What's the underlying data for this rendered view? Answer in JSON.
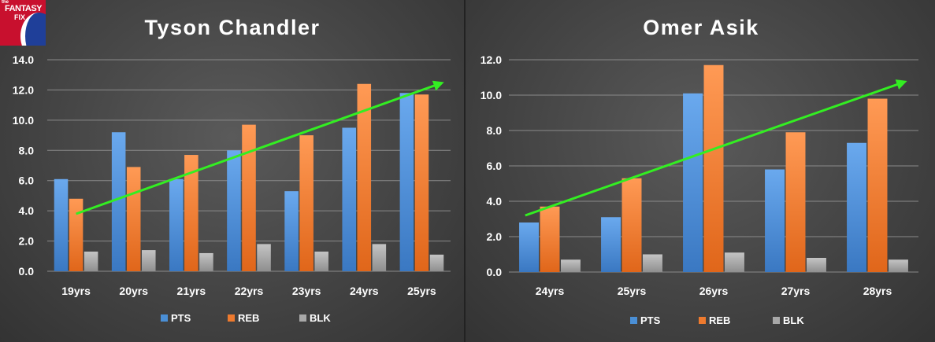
{
  "logo": {
    "line1": "the",
    "line2": "FANTASY",
    "line3": "FIX"
  },
  "chart_data": [
    {
      "type": "bar",
      "title": "Tyson Chandler",
      "categories": [
        "19yrs",
        "20yrs",
        "21yrs",
        "22yrs",
        "23yrs",
        "24yrs",
        "25yrs"
      ],
      "series": [
        {
          "name": "PTS",
          "values": [
            6.1,
            9.2,
            6.1,
            8.0,
            5.3,
            9.5,
            11.8
          ]
        },
        {
          "name": "REB",
          "values": [
            4.8,
            6.9,
            7.7,
            9.7,
            9.0,
            12.4,
            11.7
          ]
        },
        {
          "name": "BLK",
          "values": [
            1.3,
            1.4,
            1.2,
            1.8,
            1.3,
            1.8,
            1.1
          ]
        }
      ],
      "ylim": [
        0,
        14
      ],
      "yticks": [
        "0.0",
        "2.0",
        "4.0",
        "6.0",
        "8.0",
        "10.0",
        "12.0",
        "14.0"
      ],
      "trend_arrow": {
        "from": [
          0,
          3.8
        ],
        "to": [
          6.3,
          12.4
        ]
      },
      "grid": true,
      "legend": "bottom"
    },
    {
      "type": "bar",
      "title": "Omer Asik",
      "categories": [
        "24yrs",
        "25yrs",
        "26yrs",
        "27yrs",
        "28yrs"
      ],
      "series": [
        {
          "name": "PTS",
          "values": [
            2.8,
            3.1,
            10.1,
            5.8,
            7.3
          ]
        },
        {
          "name": "REB",
          "values": [
            3.7,
            5.3,
            11.7,
            7.9,
            9.8
          ]
        },
        {
          "name": "BLK",
          "values": [
            0.7,
            1.0,
            1.1,
            0.8,
            0.7
          ]
        }
      ],
      "ylim": [
        0,
        12
      ],
      "yticks": [
        "0.0",
        "2.0",
        "4.0",
        "6.0",
        "8.0",
        "10.0",
        "12.0"
      ],
      "trend_arrow": {
        "from": [
          -0.3,
          3.2
        ],
        "to": [
          4.3,
          10.7
        ]
      },
      "grid": true,
      "legend": "bottom"
    }
  ],
  "colors": {
    "PTS": "#4a8fd6",
    "REB": "#ee7a2e",
    "BLK": "#a8a8a8",
    "trend": "#33ee22",
    "grid": "#8a8a8a",
    "text": "#ffffff"
  }
}
